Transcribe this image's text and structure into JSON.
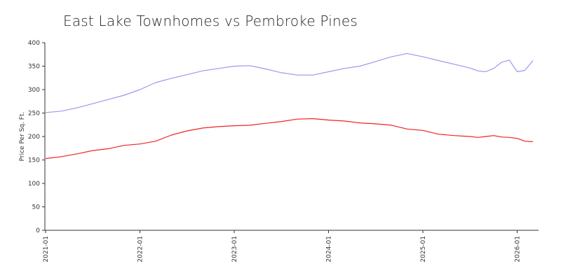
{
  "chart_data": {
    "type": "line",
    "title": "East Lake Townhomes vs Pembroke Pines",
    "xlabel": "",
    "ylabel": "Price Per Sq. Ft.",
    "ylim": [
      0,
      400
    ],
    "y_ticks": [
      0,
      50,
      100,
      150,
      200,
      250,
      300,
      350,
      400
    ],
    "x_ticks": [
      "2021-01",
      "2022-01",
      "2023-01",
      "2024-01",
      "2025-01",
      "2026-01"
    ],
    "x_range": [
      "2021-01",
      "2026-03"
    ],
    "grid": false,
    "legend": "none",
    "x": [
      "2021-01",
      "2021-03",
      "2021-05",
      "2021-07",
      "2021-09",
      "2021-11",
      "2022-01",
      "2022-03",
      "2022-05",
      "2022-07",
      "2022-09",
      "2022-11",
      "2023-01",
      "2023-03",
      "2023-05",
      "2023-07",
      "2023-09",
      "2023-11",
      "2024-01",
      "2024-03",
      "2024-05",
      "2024-07",
      "2024-09",
      "2024-11",
      "2025-01",
      "2025-03",
      "2025-05",
      "2025-07",
      "2025-08",
      "2025-09",
      "2025-10",
      "2025-11",
      "2025-12",
      "2026-01",
      "2026-02",
      "2026-03"
    ],
    "series": [
      {
        "color": "#9999ee",
        "values": [
          251,
          254,
          261,
          270,
          279,
          288,
          300,
          315,
          324,
          332,
          340,
          345,
          350,
          351,
          344,
          336,
          331,
          331,
          338,
          345,
          350,
          360,
          370,
          377,
          370,
          362,
          354,
          346,
          340,
          338,
          345,
          358,
          363,
          338,
          341,
          362
        ]
      },
      {
        "color": "#ee2222",
        "values": [
          153,
          157,
          163,
          170,
          174,
          181,
          184,
          190,
          203,
          212,
          218,
          221,
          223,
          224,
          228,
          232,
          237,
          238,
          235,
          233,
          229,
          227,
          224,
          216,
          213,
          205,
          202,
          200,
          198,
          200,
          202,
          199,
          198,
          196,
          190,
          189
        ]
      }
    ]
  }
}
